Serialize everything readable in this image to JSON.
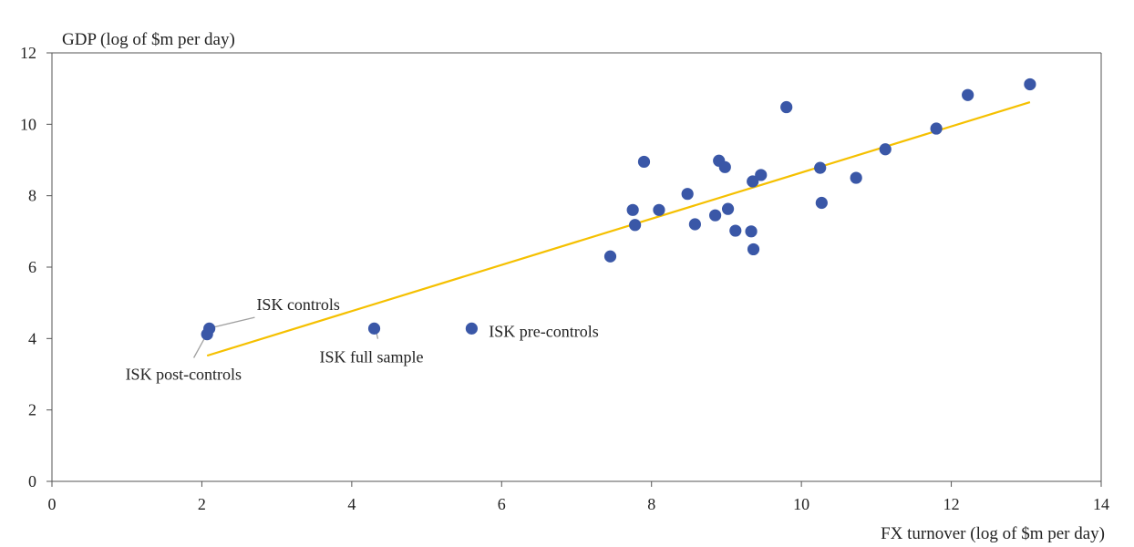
{
  "chart_data": {
    "type": "scatter",
    "title": "",
    "ylabel": "GDP (log of $m per day)",
    "xlabel": "FX turnover (log of $m per day)",
    "xlim": [
      0,
      14
    ],
    "ylim": [
      0,
      12
    ],
    "xticks": [
      "0",
      "2",
      "4",
      "6",
      "8",
      "10",
      "12",
      "14"
    ],
    "yticks": [
      "0",
      "2",
      "4",
      "6",
      "8",
      "10",
      "12"
    ],
    "grid": false,
    "legend": "none",
    "colors": {
      "points": "#3a57a7",
      "trend": "#f5c000",
      "annotation_line": "#a0a0a0",
      "axis": "#555555"
    },
    "points": [
      {
        "x": 2.1,
        "y": 4.28
      },
      {
        "x": 2.07,
        "y": 4.12
      },
      {
        "x": 4.3,
        "y": 4.28
      },
      {
        "x": 5.6,
        "y": 4.28
      },
      {
        "x": 7.45,
        "y": 6.3
      },
      {
        "x": 7.75,
        "y": 7.6
      },
      {
        "x": 7.78,
        "y": 7.18
      },
      {
        "x": 7.9,
        "y": 8.95
      },
      {
        "x": 8.1,
        "y": 7.6
      },
      {
        "x": 8.48,
        "y": 8.05
      },
      {
        "x": 8.58,
        "y": 7.2
      },
      {
        "x": 8.85,
        "y": 7.45
      },
      {
        "x": 8.9,
        "y": 8.98
      },
      {
        "x": 8.98,
        "y": 8.8
      },
      {
        "x": 9.02,
        "y": 7.63
      },
      {
        "x": 9.12,
        "y": 7.02
      },
      {
        "x": 9.33,
        "y": 7.0
      },
      {
        "x": 9.35,
        "y": 8.4
      },
      {
        "x": 9.36,
        "y": 6.5
      },
      {
        "x": 9.46,
        "y": 8.58
      },
      {
        "x": 9.8,
        "y": 10.48
      },
      {
        "x": 10.25,
        "y": 8.78
      },
      {
        "x": 10.27,
        "y": 7.8
      },
      {
        "x": 10.73,
        "y": 8.5
      },
      {
        "x": 11.12,
        "y": 9.3
      },
      {
        "x": 11.8,
        "y": 9.88
      },
      {
        "x": 12.22,
        "y": 10.82
      },
      {
        "x": 13.05,
        "y": 11.12
      }
    ],
    "trendline": {
      "x": [
        2.07,
        13.05
      ],
      "y": [
        3.52,
        10.62
      ]
    },
    "annotations": [
      {
        "text": "ISK controls",
        "px": 2.1,
        "py": 4.28,
        "lx": 2.73,
        "ly": 4.95,
        "anchor": "start",
        "leader_to_x": 2.12,
        "leader_to_y": 4.3
      },
      {
        "text": "ISK post-controls",
        "px": 2.07,
        "py": 4.12,
        "lx": 0.98,
        "ly": 3.0,
        "anchor": "start",
        "leader_to_x": 2.06,
        "leader_to_y": 4.1
      },
      {
        "text": "ISK full sample",
        "px": 4.3,
        "py": 4.28,
        "lx": 3.57,
        "ly": 3.48,
        "anchor": "start",
        "leader_to_x": 4.32,
        "leader_to_y": 4.25
      },
      {
        "text": "ISK pre-controls",
        "px": 5.6,
        "py": 4.28,
        "lx": 5.83,
        "ly": 4.2,
        "anchor": "start",
        "leader_to_x": null,
        "leader_to_y": null
      }
    ]
  }
}
